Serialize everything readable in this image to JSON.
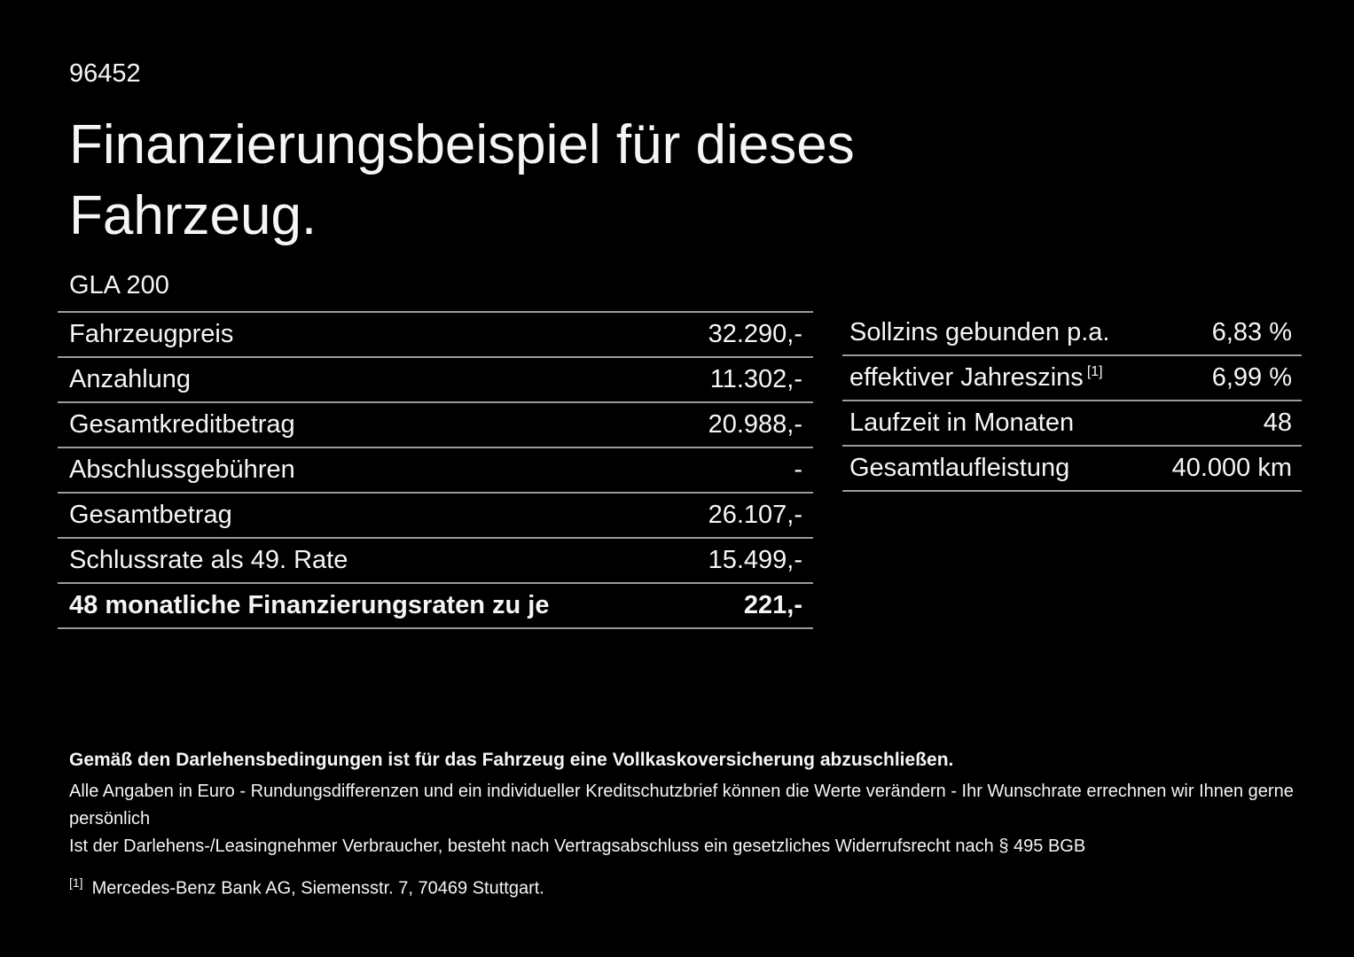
{
  "colors": {
    "background": "#000000",
    "text": "#f5f5f5",
    "line": "#9b9b9b"
  },
  "header": {
    "vehicle_id": "96452",
    "title_line1": "Finanzierungsbeispiel für dieses",
    "title_line2": "Fahrzeug.",
    "model": "GLA 200"
  },
  "financing_table": {
    "rows": [
      {
        "label": "Fahrzeugpreis",
        "value": "32.290,-"
      },
      {
        "label": "Anzahlung",
        "value": "11.302,-"
      },
      {
        "label": "Gesamtkreditbetrag",
        "value": "20.988,-"
      },
      {
        "label": "Abschlussgebühren",
        "value": "-"
      },
      {
        "label": "Gesamtbetrag",
        "value": "26.107,-"
      },
      {
        "label": "Schlussrate als 49. Rate",
        "value": "15.499,-"
      },
      {
        "label": "48 monatliche Finanzierungsraten zu je",
        "value": "221,-"
      }
    ]
  },
  "conditions_table": {
    "rows": [
      {
        "label": "Sollzins gebunden p.a.",
        "value": "6,83 %"
      },
      {
        "label": "effektiver Jahreszins",
        "footnote_marker": "[1]",
        "value": "6,99 %"
      },
      {
        "label": "Laufzeit in Monaten",
        "value": "48"
      },
      {
        "label": "Gesamtlaufleistung",
        "value": "40.000 km"
      }
    ]
  },
  "footer": {
    "insurance_note": "Gemäß den Darlehensbedingungen ist für das Fahrzeug eine Vollkaskoversicherung abzuschließen.",
    "note_line1": "Alle Angaben in Euro - Rundungsdifferenzen und ein individueller Kreditschutzbrief können die Werte verändern - Ihr Wunschrate errechnen wir Ihnen gerne persönlich",
    "note_line2": "Ist der Darlehens-/Leasingnehmer Verbraucher, besteht nach Vertragsabschluss ein gesetzliches Widerrufsrecht nach § 495 BGB",
    "footnote_marker": "[1]",
    "footnote_text": "Mercedes-Benz Bank AG, Siemensstr. 7, 70469 Stuttgart."
  }
}
